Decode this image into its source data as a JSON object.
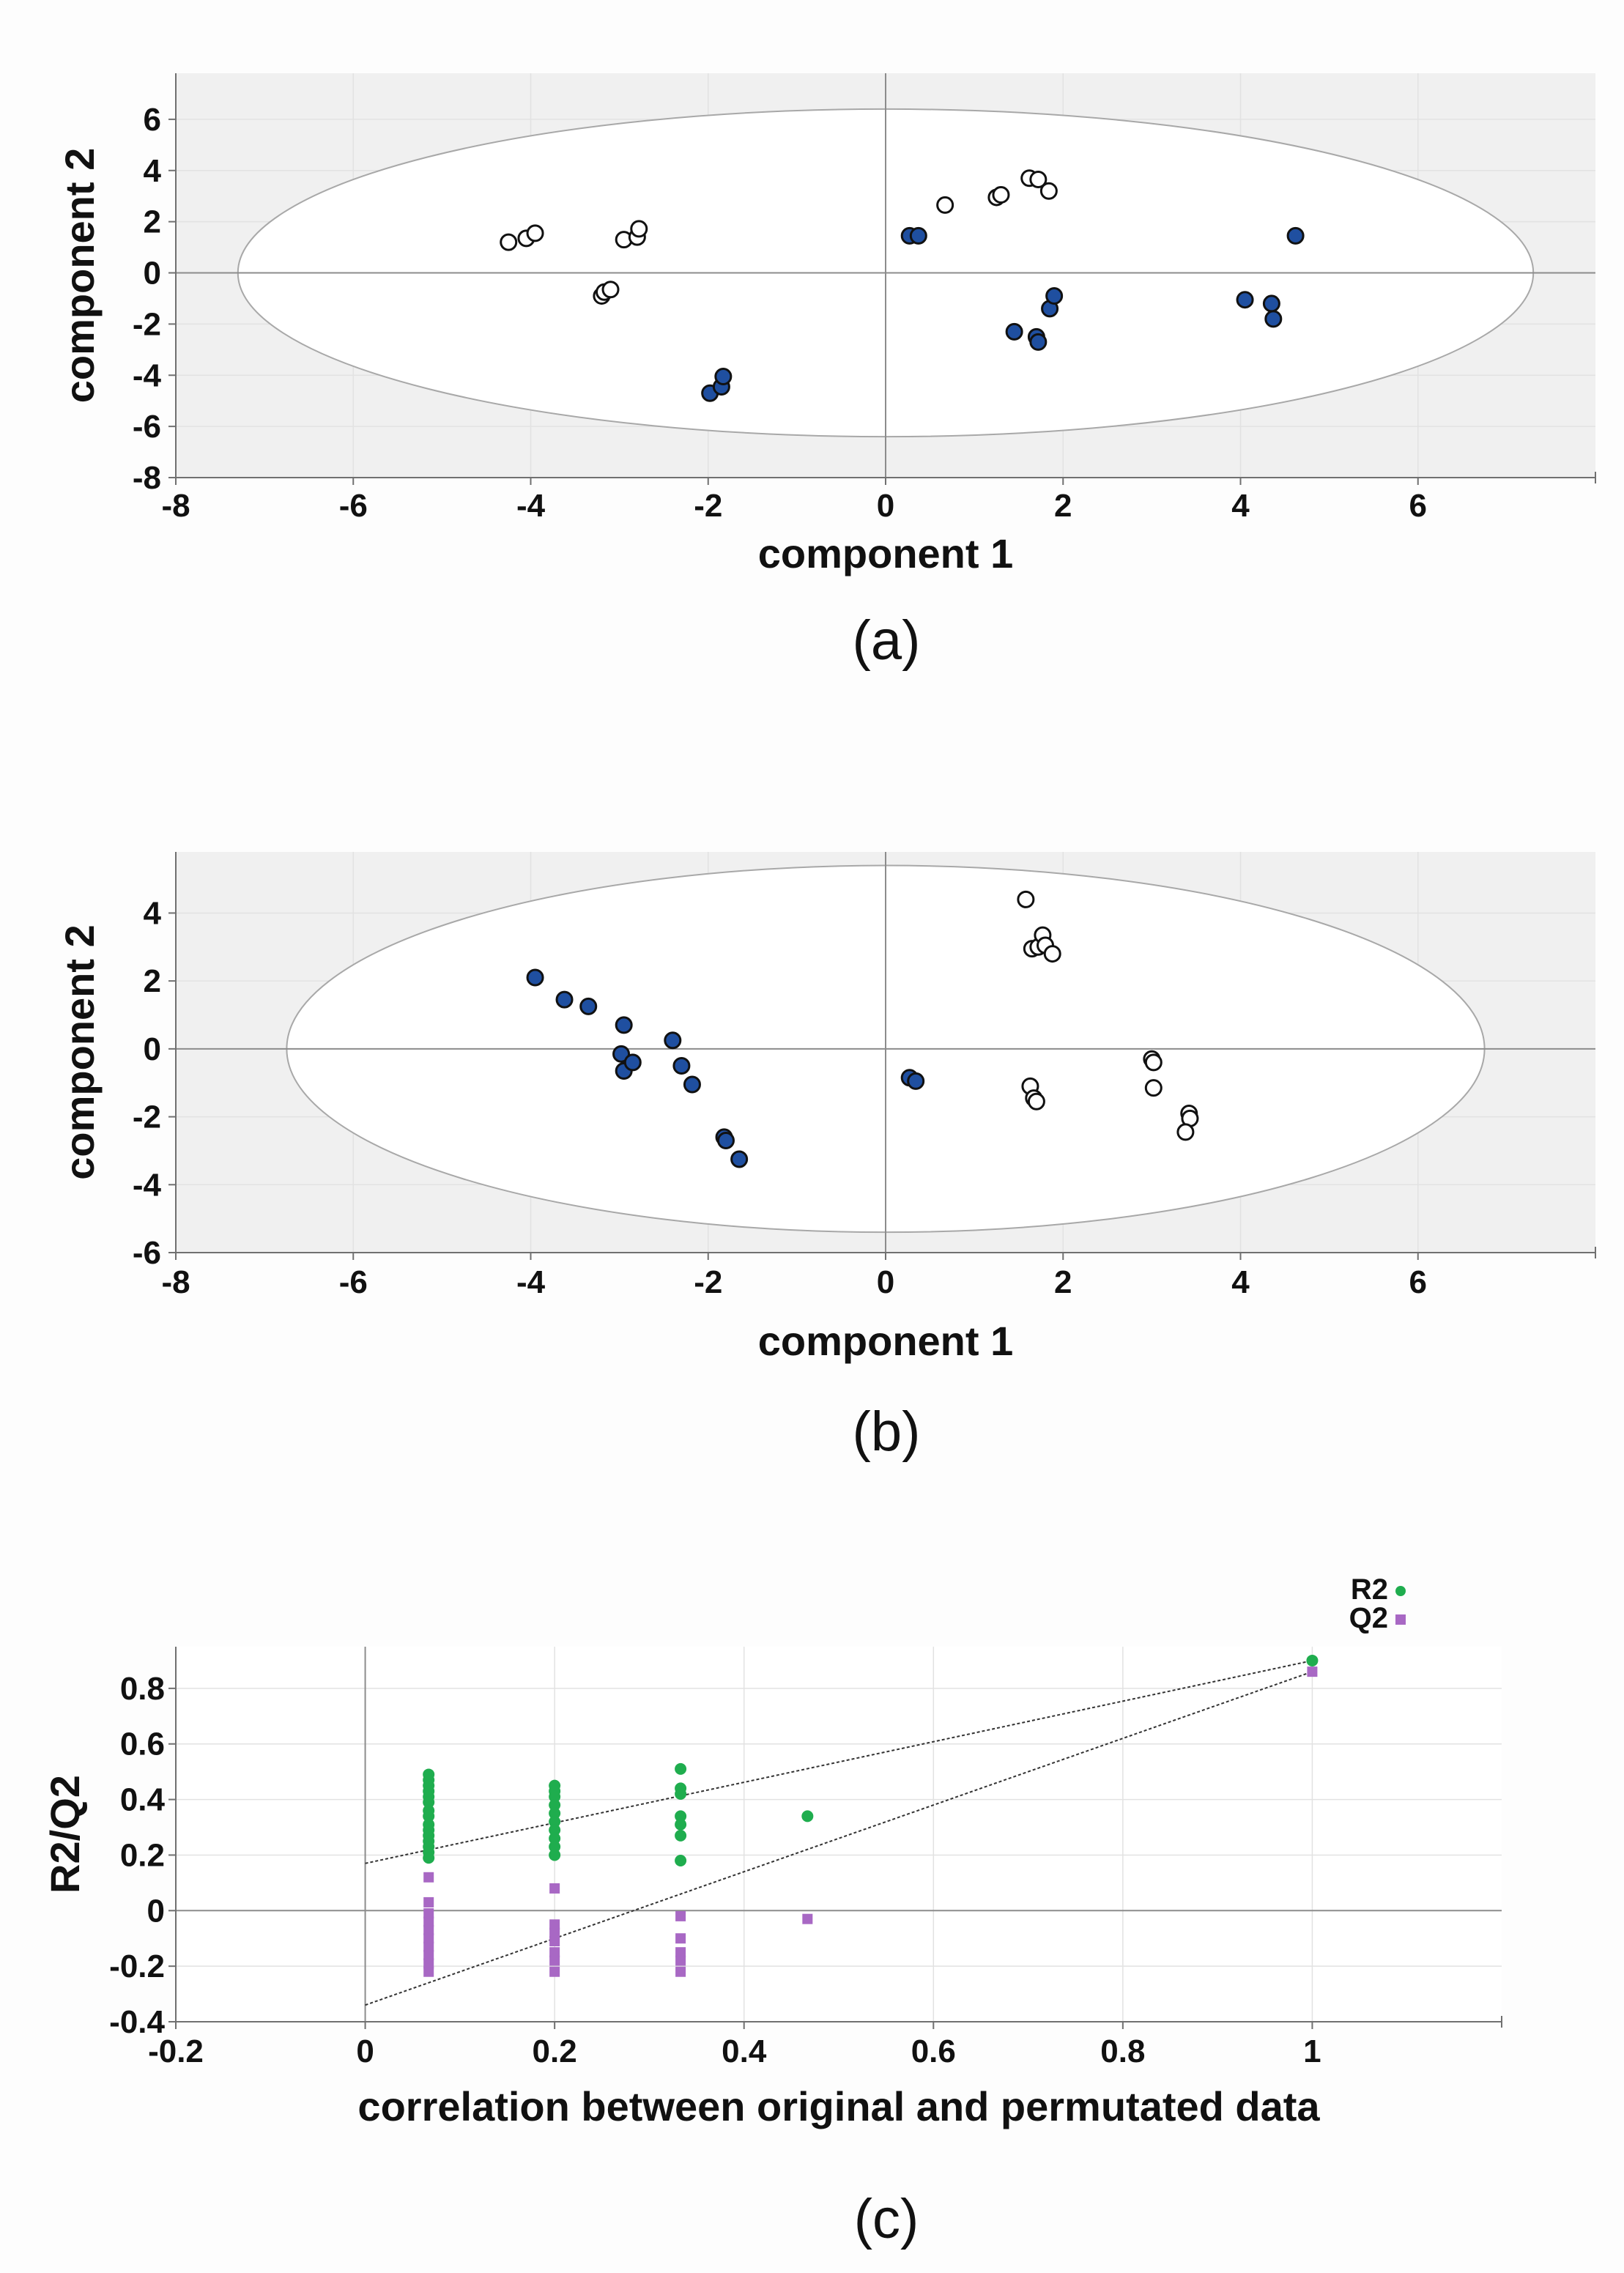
{
  "chart_data": [
    {
      "type": "scatter",
      "panel_label": "(a)",
      "xlabel": "component 1",
      "ylabel": "component 2",
      "xlim": [
        -8,
        8
      ],
      "ylim": [
        -8,
        7.8
      ],
      "xticks": [
        -8,
        -6,
        -4,
        -2,
        0,
        2,
        4,
        6
      ],
      "yticks": [
        6,
        4,
        2,
        0,
        -2,
        -4,
        -6,
        -8
      ],
      "ellipse": {
        "cx": 0,
        "cy": 0,
        "rx": 7.3,
        "ry": 6.4
      },
      "series": [
        {
          "name": "group open",
          "fill": "#ffffff",
          "points": [
            [
              -4.25,
              1.2
            ],
            [
              -4.05,
              1.35
            ],
            [
              -3.95,
              1.55
            ],
            [
              -2.95,
              1.3
            ],
            [
              -2.8,
              1.4
            ],
            [
              -2.78,
              1.72
            ],
            [
              -3.2,
              -0.9
            ],
            [
              -3.17,
              -0.75
            ],
            [
              -3.1,
              -0.65
            ],
            [
              0.67,
              2.65
            ],
            [
              1.25,
              2.95
            ],
            [
              1.3,
              3.05
            ],
            [
              1.62,
              3.7
            ],
            [
              1.72,
              3.65
            ],
            [
              1.84,
              3.2
            ]
          ]
        },
        {
          "name": "group filled",
          "fill": "#1f4fa0",
          "points": [
            [
              0.27,
              1.45
            ],
            [
              0.37,
              1.45
            ],
            [
              -1.98,
              -4.7
            ],
            [
              -1.85,
              -4.45
            ],
            [
              -1.83,
              -4.05
            ],
            [
              1.45,
              -2.3
            ],
            [
              1.7,
              -2.5
            ],
            [
              1.72,
              -2.7
            ],
            [
              1.85,
              -1.4
            ],
            [
              1.9,
              -0.9
            ],
            [
              4.05,
              -1.05
            ],
            [
              4.35,
              -1.2
            ],
            [
              4.37,
              -1.8
            ],
            [
              4.62,
              1.45
            ]
          ]
        }
      ]
    },
    {
      "type": "scatter",
      "panel_label": "(b)",
      "xlabel": "component 1",
      "ylabel": "component 2",
      "xlim": [
        -8,
        8
      ],
      "ylim": [
        -6,
        5.8
      ],
      "xticks": [
        -8,
        -6,
        -4,
        -2,
        0,
        2,
        4,
        6
      ],
      "yticks": [
        4,
        2,
        0,
        -2,
        -4,
        -6
      ],
      "ellipse": {
        "cx": 0,
        "cy": 0,
        "rx": 6.75,
        "ry": 5.4
      },
      "series": [
        {
          "name": "group open",
          "fill": "#ffffff",
          "points": [
            [
              1.58,
              4.4
            ],
            [
              1.65,
              2.95
            ],
            [
              1.72,
              3.0
            ],
            [
              1.77,
              3.35
            ],
            [
              1.8,
              3.05
            ],
            [
              1.88,
              2.8
            ],
            [
              1.63,
              -1.1
            ],
            [
              1.67,
              -1.45
            ],
            [
              1.7,
              -1.55
            ],
            [
              3.0,
              -0.3
            ],
            [
              3.02,
              -0.4
            ],
            [
              3.02,
              -1.15
            ],
            [
              3.42,
              -1.9
            ],
            [
              3.43,
              -2.05
            ],
            [
              3.38,
              -2.45
            ]
          ]
        },
        {
          "name": "group filled",
          "fill": "#1f4fa0",
          "points": [
            [
              -3.95,
              2.1
            ],
            [
              -3.62,
              1.45
            ],
            [
              -3.35,
              1.25
            ],
            [
              -2.95,
              0.7
            ],
            [
              -2.98,
              -0.15
            ],
            [
              -2.95,
              -0.65
            ],
            [
              -2.85,
              -0.4
            ],
            [
              -2.4,
              0.25
            ],
            [
              -2.3,
              -0.5
            ],
            [
              -2.18,
              -1.05
            ],
            [
              -1.82,
              -2.6
            ],
            [
              -1.8,
              -2.7
            ],
            [
              -1.65,
              -3.25
            ],
            [
              0.27,
              -0.85
            ],
            [
              0.34,
              -0.95
            ]
          ]
        }
      ]
    },
    {
      "type": "scatter",
      "panel_label": "(c)",
      "xlabel": "correlation between original and permutated data",
      "ylabel": "R2/Q2",
      "xlim": [
        -0.2,
        1.2
      ],
      "ylim": [
        -0.4,
        0.95
      ],
      "xticks": [
        -0.2,
        0,
        0.2,
        0.4,
        0.6,
        0.8,
        1
      ],
      "yticks": [
        0.8,
        0.6,
        0.4,
        0.2,
        0,
        -0.2,
        -0.4
      ],
      "legend": {
        "position": "top-right",
        "entries": [
          "R2",
          "Q2"
        ]
      },
      "series": [
        {
          "name": "R2",
          "color": "#1fad4e",
          "marker": "circle",
          "points": [
            [
              0.067,
              0.49
            ],
            [
              0.067,
              0.47
            ],
            [
              0.067,
              0.45
            ],
            [
              0.067,
              0.43
            ],
            [
              0.067,
              0.41
            ],
            [
              0.067,
              0.39
            ],
            [
              0.067,
              0.36
            ],
            [
              0.067,
              0.34
            ],
            [
              0.067,
              0.31
            ],
            [
              0.067,
              0.29
            ],
            [
              0.067,
              0.27
            ],
            [
              0.067,
              0.25
            ],
            [
              0.067,
              0.23
            ],
            [
              0.067,
              0.21
            ],
            [
              0.067,
              0.19
            ],
            [
              0.2,
              0.45
            ],
            [
              0.2,
              0.43
            ],
            [
              0.2,
              0.41
            ],
            [
              0.2,
              0.38
            ],
            [
              0.2,
              0.35
            ],
            [
              0.2,
              0.32
            ],
            [
              0.2,
              0.29
            ],
            [
              0.2,
              0.26
            ],
            [
              0.2,
              0.23
            ],
            [
              0.2,
              0.2
            ],
            [
              0.333,
              0.51
            ],
            [
              0.333,
              0.44
            ],
            [
              0.333,
              0.42
            ],
            [
              0.333,
              0.34
            ],
            [
              0.333,
              0.31
            ],
            [
              0.333,
              0.27
            ],
            [
              0.333,
              0.18
            ],
            [
              0.467,
              0.34
            ],
            [
              1,
              0.9
            ]
          ]
        },
        {
          "name": "Q2",
          "color": "#a868c4",
          "marker": "square",
          "points": [
            [
              0.067,
              0.12
            ],
            [
              0.067,
              0.03
            ],
            [
              0.067,
              -0.01
            ],
            [
              0.067,
              -0.04
            ],
            [
              0.067,
              -0.07
            ],
            [
              0.067,
              -0.1
            ],
            [
              0.067,
              -0.13
            ],
            [
              0.067,
              -0.16
            ],
            [
              0.067,
              -0.19
            ],
            [
              0.067,
              -0.22
            ],
            [
              0.2,
              0.08
            ],
            [
              0.2,
              -0.05
            ],
            [
              0.2,
              -0.08
            ],
            [
              0.2,
              -0.11
            ],
            [
              0.2,
              -0.15
            ],
            [
              0.2,
              -0.18
            ],
            [
              0.2,
              -0.22
            ],
            [
              0.333,
              -0.02
            ],
            [
              0.333,
              -0.1
            ],
            [
              0.333,
              -0.15
            ],
            [
              0.333,
              -0.18
            ],
            [
              0.333,
              -0.22
            ],
            [
              0.467,
              -0.03
            ],
            [
              1,
              0.86
            ]
          ]
        }
      ],
      "regression_lines": [
        {
          "name": "R2 intercept line",
          "from": [
            0,
            0.17
          ],
          "to": [
            1,
            0.9
          ]
        },
        {
          "name": "Q2 intercept line",
          "from": [
            0,
            -0.34
          ],
          "to": [
            1,
            0.86
          ]
        }
      ]
    }
  ]
}
